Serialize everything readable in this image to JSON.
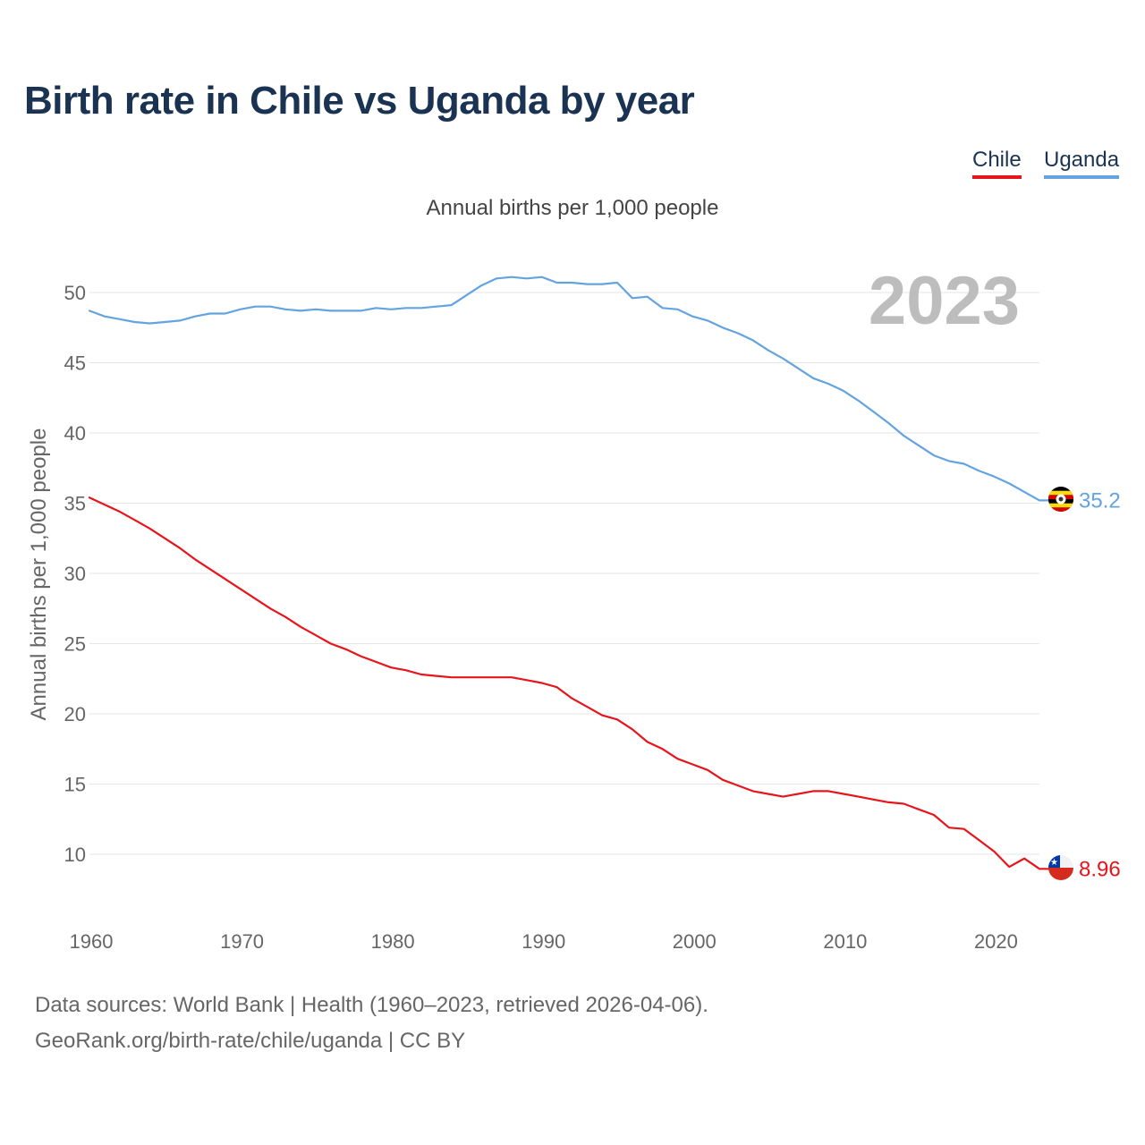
{
  "title": "Birth rate in Chile vs Uganda by year",
  "legend": [
    {
      "name": "Chile",
      "color": "#e8141c"
    },
    {
      "name": "Uganda",
      "color": "#63a4e0"
    }
  ],
  "footer": {
    "line1": "Data sources: World Bank | Health (1960–2023, retrieved 2026-04-06).",
    "line2": "GeoRank.org/birth-rate/chile/uganda | CC BY"
  },
  "chart_data": {
    "type": "line",
    "title": "Birth rate in Chile vs Uganda by year",
    "subtitle": "Annual births per 1,000 people",
    "xlabel": "",
    "ylabel": "Annual births per 1,000 people",
    "year_watermark": "2023",
    "xlim": [
      1960,
      2023
    ],
    "ylim": [
      6,
      53
    ],
    "xticks": [
      1960,
      1970,
      1980,
      1990,
      2000,
      2010,
      2020
    ],
    "yticks": [
      10,
      15,
      20,
      25,
      30,
      35,
      40,
      45,
      50
    ],
    "grid": true,
    "legend_position": "top-right",
    "x": [
      1960,
      1961,
      1962,
      1963,
      1964,
      1965,
      1966,
      1967,
      1968,
      1969,
      1970,
      1971,
      1972,
      1973,
      1974,
      1975,
      1976,
      1977,
      1978,
      1979,
      1980,
      1981,
      1982,
      1983,
      1984,
      1985,
      1986,
      1987,
      1988,
      1989,
      1990,
      1991,
      1992,
      1993,
      1994,
      1995,
      1996,
      1997,
      1998,
      1999,
      2000,
      2001,
      2002,
      2003,
      2004,
      2005,
      2006,
      2007,
      2008,
      2009,
      2010,
      2011,
      2012,
      2013,
      2014,
      2015,
      2016,
      2017,
      2018,
      2019,
      2020,
      2021,
      2022,
      2023
    ],
    "series": [
      {
        "name": "Chile",
        "color": "#e8141c",
        "end_label": "8.96",
        "values": [
          35.4,
          34.9,
          34.4,
          33.8,
          33.2,
          32.5,
          31.8,
          31.0,
          30.3,
          29.6,
          28.9,
          28.2,
          27.5,
          26.9,
          26.2,
          25.6,
          25.0,
          24.6,
          24.1,
          23.7,
          23.3,
          23.1,
          22.8,
          22.7,
          22.6,
          22.6,
          22.6,
          22.6,
          22.6,
          22.4,
          22.2,
          21.9,
          21.1,
          20.5,
          19.9,
          19.6,
          18.9,
          18.0,
          17.5,
          16.8,
          16.4,
          16.0,
          15.3,
          14.9,
          14.5,
          14.3,
          14.1,
          14.3,
          14.5,
          14.5,
          14.3,
          14.1,
          13.9,
          13.7,
          13.6,
          13.2,
          12.8,
          11.9,
          11.8,
          11.0,
          10.2,
          9.1,
          9.7,
          8.96
        ]
      },
      {
        "name": "Uganda",
        "color": "#63a4e0",
        "end_label": "35.2",
        "values": [
          48.7,
          48.3,
          48.1,
          47.9,
          47.8,
          47.9,
          48.0,
          48.3,
          48.5,
          48.5,
          48.8,
          49.0,
          49.0,
          48.8,
          48.7,
          48.8,
          48.7,
          48.7,
          48.7,
          48.9,
          48.8,
          48.9,
          48.9,
          49.0,
          49.1,
          49.8,
          50.5,
          51.0,
          51.1,
          51.0,
          51.1,
          50.7,
          50.7,
          50.6,
          50.6,
          50.7,
          49.6,
          49.7,
          48.9,
          48.8,
          48.3,
          48.0,
          47.5,
          47.1,
          46.6,
          45.9,
          45.3,
          44.6,
          43.9,
          43.5,
          43.0,
          42.3,
          41.5,
          40.7,
          39.8,
          39.1,
          38.4,
          38.0,
          37.8,
          37.3,
          36.9,
          36.4,
          35.8,
          35.2
        ]
      }
    ]
  }
}
